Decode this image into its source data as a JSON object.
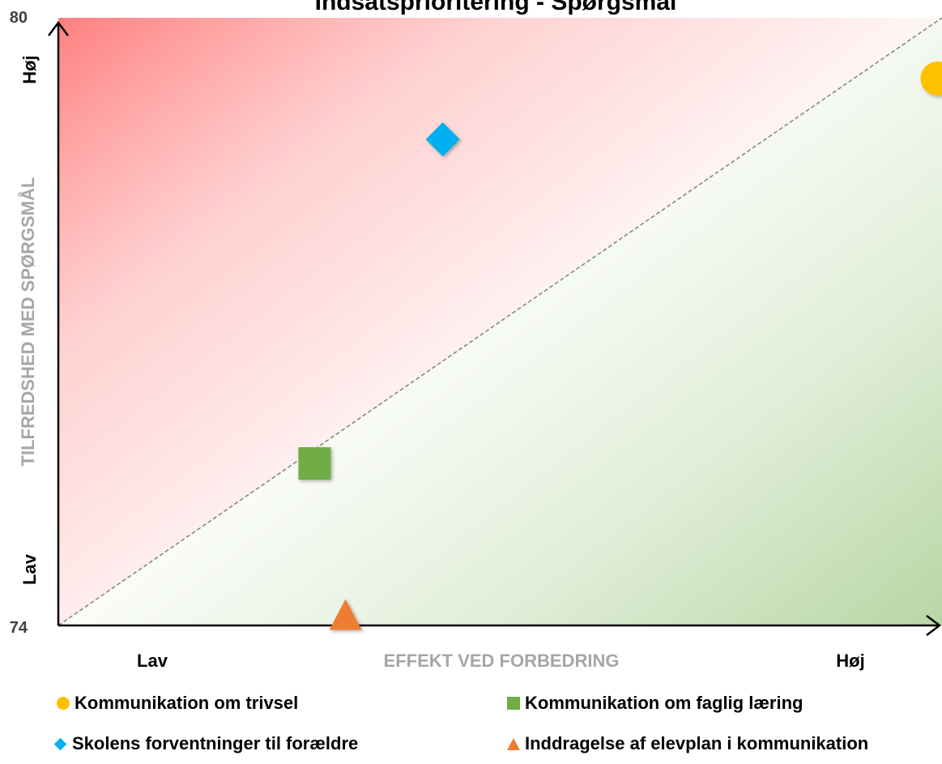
{
  "chart_data": {
    "type": "scatter",
    "title": "Indsatsprioritering - Spørgsmål",
    "xlabel": "EFFEKT VED FORBEDRING",
    "ylabel": "TILFREDSHED MED SPØRGSMÅL",
    "x_low_label": "Lav",
    "x_high_label": "Høj",
    "y_low_label": "Lav",
    "y_high_label": "Høj",
    "xlim": [
      0,
      1
    ],
    "ylim": [
      74,
      80
    ],
    "yticks": [
      "80",
      "74"
    ],
    "diagonal_reference_line": true,
    "background": "gradient red (top-left) to green (bottom-right)",
    "series": [
      {
        "name": "Kommunikation om trivsel",
        "marker": "circle",
        "color": "#FFC000",
        "x": 0.995,
        "y": 79.4
      },
      {
        "name": "Kommunikation om faglig læring",
        "marker": "square",
        "color": "#70AD47",
        "x": 0.29,
        "y": 75.6
      },
      {
        "name": "Skolens forventninger til forældre",
        "marker": "diamond",
        "color": "#00B0F0",
        "x": 0.435,
        "y": 78.8
      },
      {
        "name": "Inddragelse af elevplan i kommunikation",
        "marker": "triangle",
        "color": "#ED7D31",
        "x": 0.325,
        "y": 74.1
      }
    ]
  }
}
